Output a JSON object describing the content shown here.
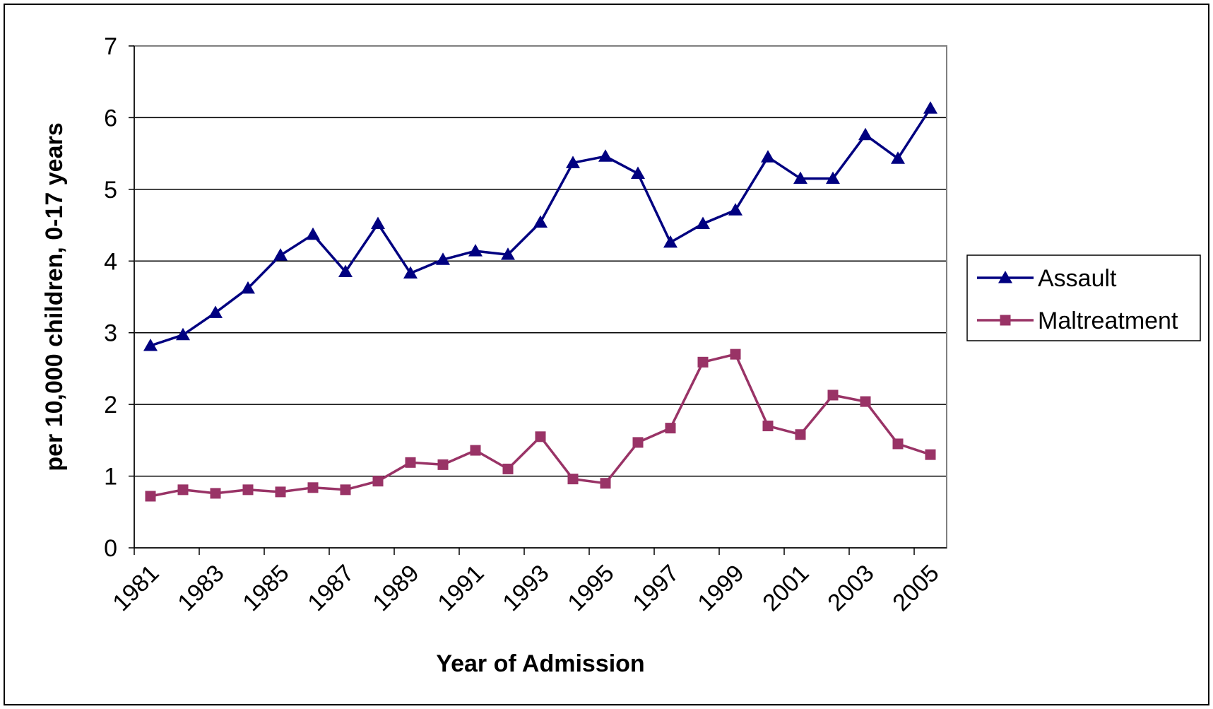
{
  "chart_data": {
    "type": "line",
    "title": "",
    "xlabel": "Year of Admission",
    "ylabel": "per 10,000 children, 0-17 years",
    "ylim": [
      0,
      7
    ],
    "yticks": [
      "0",
      "1",
      "2",
      "3",
      "4",
      "5",
      "6",
      "7"
    ],
    "x": [
      1981,
      1982,
      1983,
      1984,
      1985,
      1986,
      1987,
      1988,
      1989,
      1990,
      1991,
      1992,
      1993,
      1994,
      1995,
      1996,
      1997,
      1998,
      1999,
      2000,
      2001,
      2002,
      2003,
      2004,
      2005
    ],
    "xtick_labels": [
      "1981",
      "1983",
      "1985",
      "1987",
      "1989",
      "1991",
      "1993",
      "1995",
      "1997",
      "1999",
      "2001",
      "2003",
      "2005"
    ],
    "grid": true,
    "legend_position": "right",
    "series": [
      {
        "name": "Assault",
        "color": "#000080",
        "marker": "triangle",
        "values": [
          2.82,
          2.97,
          3.28,
          3.62,
          4.08,
          4.37,
          3.85,
          4.52,
          3.83,
          4.02,
          4.14,
          4.09,
          4.54,
          5.37,
          5.46,
          5.22,
          4.26,
          4.52,
          4.71,
          5.45,
          5.15,
          5.15,
          5.76,
          5.43,
          6.13
        ]
      },
      {
        "name": "Maltreatment",
        "color": "#993366",
        "marker": "square",
        "values": [
          0.72,
          0.81,
          0.76,
          0.81,
          0.78,
          0.84,
          0.81,
          0.93,
          1.19,
          1.16,
          1.36,
          1.1,
          1.55,
          0.96,
          0.9,
          1.47,
          1.67,
          2.59,
          2.7,
          1.7,
          1.58,
          2.13,
          2.04,
          1.45,
          1.3
        ]
      }
    ]
  }
}
